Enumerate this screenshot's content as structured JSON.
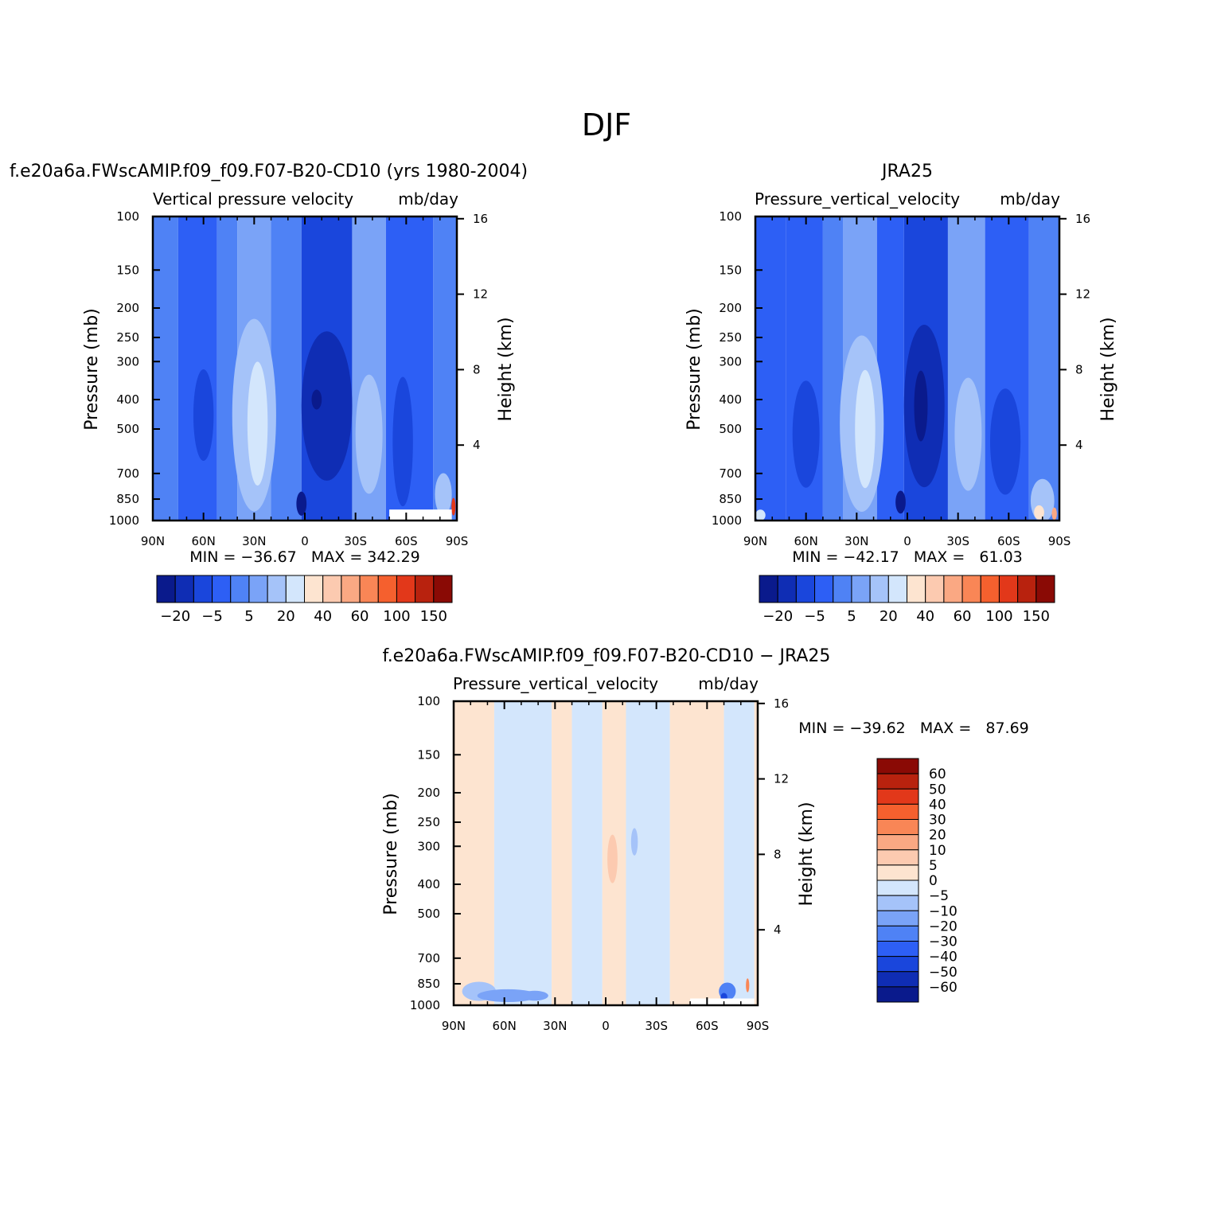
{
  "page_title": "DJF",
  "colors": {
    "neg_scale": [
      "#0a1a8c",
      "#0f2db4",
      "#1a46dc",
      "#2d5ff5",
      "#4f82f5",
      "#7aa3f7",
      "#a5c3f9",
      "#d3e6fc"
    ],
    "pos_scale": [
      "#fde4d0",
      "#fccab0",
      "#faa883",
      "#f98656",
      "#f5602e",
      "#e2381a",
      "#b8220e",
      "#8a0a05"
    ],
    "missing": "#ffffff"
  },
  "chart_data": [
    {
      "type": "heatmap",
      "panel_title": "f.e20a6a.FWscAMIP.f09_f09.F07-B20-CD10 (yrs 1980-2004)",
      "variable": "Vertical pressure velocity",
      "units": "mb/day",
      "ylabel": "Pressure (mb)",
      "y2label": "Height (km)",
      "x_ticks": [
        "90N",
        "60N",
        "30N",
        "0",
        "30S",
        "60S",
        "90S"
      ],
      "x_range": [
        90,
        -90
      ],
      "y_ticks": [
        100,
        150,
        200,
        250,
        300,
        400,
        500,
        700,
        850,
        1000
      ],
      "y_range": [
        100,
        1000
      ],
      "y_scale": "log",
      "y2_ticks": [
        16,
        12,
        8,
        4
      ],
      "min_label": "MIN = −36.67",
      "max_label": "MAX = 342.29",
      "colorbar": {
        "orientation": "horizontal",
        "tick_labels": [
          "−20",
          "−5",
          "5",
          "20",
          "40",
          "60",
          "100",
          "150"
        ]
      },
      "bands": [
        {
          "lat_from": 90,
          "lat_to": 75,
          "level": 4
        },
        {
          "lat_from": 75,
          "lat_to": 52,
          "level": 3
        },
        {
          "lat_from": 52,
          "lat_to": 40,
          "level": 4
        },
        {
          "lat_from": 40,
          "lat_to": 20,
          "level": 5
        },
        {
          "lat_from": 20,
          "lat_to": 2,
          "level": 4
        },
        {
          "lat_from": 2,
          "lat_to": -28,
          "level": 2
        },
        {
          "lat_from": -28,
          "lat_to": -48,
          "level": 5
        },
        {
          "lat_from": -48,
          "lat_to": -76,
          "level": 3
        },
        {
          "lat_from": -76,
          "lat_to": -90,
          "level": 4
        }
      ],
      "blobs": [
        {
          "lat": 60,
          "p": 450,
          "dlat": 6,
          "dp": 300,
          "level": 2
        },
        {
          "lat": 30,
          "p": 450,
          "dlat": 13,
          "dp": 560,
          "level": 6
        },
        {
          "lat": 28,
          "p": 480,
          "dlat": 6,
          "dp": 420,
          "level": 7
        },
        {
          "lat": -13,
          "p": 420,
          "dlat": 15,
          "dp": 430,
          "level": 1
        },
        {
          "lat": -7,
          "p": 400,
          "dlat": 3,
          "dp": 60,
          "level": 0
        },
        {
          "lat": 2,
          "p": 880,
          "dlat": 3,
          "dp": 160,
          "level": 0
        },
        {
          "lat": -38,
          "p": 520,
          "dlat": 8,
          "dp": 440,
          "level": 6
        },
        {
          "lat": -58,
          "p": 550,
          "dlat": 6,
          "dp": 500,
          "level": 2
        },
        {
          "lat": -82,
          "p": 820,
          "dlat": 5,
          "dp": 260,
          "level": 6
        },
        {
          "lat": -88,
          "p": 900,
          "dlat": 1.2,
          "dp": 120,
          "level": 13
        }
      ],
      "missing_boxes": [
        {
          "lat_from": -50,
          "lat_to": -87,
          "p_from": 920,
          "p_to": 1000
        }
      ]
    },
    {
      "type": "heatmap",
      "panel_title": "JRA25",
      "variable": "Pressure_vertical_velocity",
      "units": "mb/day",
      "ylabel": "Pressure (mb)",
      "y2label": "Height (km)",
      "x_ticks": [
        "90N",
        "60N",
        "30N",
        "0",
        "30S",
        "60S",
        "90S"
      ],
      "x_range": [
        90,
        -90
      ],
      "y_ticks": [
        100,
        150,
        200,
        250,
        300,
        400,
        500,
        700,
        850,
        1000
      ],
      "y_range": [
        100,
        1000
      ],
      "y_scale": "log",
      "y2_ticks": [
        16,
        12,
        8,
        4
      ],
      "min_label": "MIN = −42.17",
      "max_label": "MAX =   61.03",
      "colorbar": {
        "orientation": "horizontal",
        "tick_labels": [
          "−20",
          "−5",
          "5",
          "20",
          "40",
          "60",
          "100",
          "150"
        ]
      },
      "bands": [
        {
          "lat_from": 90,
          "lat_to": 72,
          "level": 3
        },
        {
          "lat_from": 72,
          "lat_to": 50,
          "level": 3
        },
        {
          "lat_from": 50,
          "lat_to": 38,
          "level": 4
        },
        {
          "lat_from": 38,
          "lat_to": 18,
          "level": 5
        },
        {
          "lat_from": 18,
          "lat_to": 2,
          "level": 3
        },
        {
          "lat_from": 2,
          "lat_to": -24,
          "level": 2
        },
        {
          "lat_from": -24,
          "lat_to": -46,
          "level": 5
        },
        {
          "lat_from": -46,
          "lat_to": -72,
          "level": 3
        },
        {
          "lat_from": -72,
          "lat_to": -90,
          "level": 4
        }
      ],
      "blobs": [
        {
          "lat": 60,
          "p": 520,
          "dlat": 8,
          "dp": 400,
          "level": 2
        },
        {
          "lat": 27,
          "p": 480,
          "dlat": 13,
          "dp": 560,
          "level": 6
        },
        {
          "lat": 25,
          "p": 500,
          "dlat": 6,
          "dp": 420,
          "level": 7
        },
        {
          "lat": -10,
          "p": 420,
          "dlat": 12,
          "dp": 460,
          "level": 1
        },
        {
          "lat": -8,
          "p": 420,
          "dlat": 4,
          "dp": 220,
          "level": 0
        },
        {
          "lat": 4,
          "p": 870,
          "dlat": 3,
          "dp": 150,
          "level": 0
        },
        {
          "lat": -36,
          "p": 520,
          "dlat": 8,
          "dp": 420,
          "level": 6
        },
        {
          "lat": -58,
          "p": 550,
          "dlat": 9,
          "dp": 420,
          "level": 2
        },
        {
          "lat": -80,
          "p": 860,
          "dlat": 7,
          "dp": 280,
          "level": 6
        },
        {
          "lat": -78,
          "p": 940,
          "dlat": 3,
          "dp": 100,
          "level": 8
        },
        {
          "lat": -87,
          "p": 950,
          "dlat": 1.5,
          "dp": 90,
          "level": 10
        },
        {
          "lat": 87,
          "p": 960,
          "dlat": 3,
          "dp": 80,
          "level": 7
        }
      ],
      "missing_boxes": []
    },
    {
      "type": "heatmap",
      "panel_title": "f.e20a6a.FWscAMIP.f09_f09.F07-B20-CD10 − JRA25",
      "variable": "Pressure_vertical_velocity",
      "units": "mb/day",
      "ylabel": "Pressure (mb)",
      "y2label": "Height (km)",
      "x_ticks": [
        "90N",
        "60N",
        "30N",
        "0",
        "30S",
        "60S",
        "90S"
      ],
      "x_range": [
        90,
        -90
      ],
      "y_ticks": [
        100,
        150,
        200,
        250,
        300,
        400,
        500,
        700,
        850,
        1000
      ],
      "y_range": [
        100,
        1000
      ],
      "y_scale": "log",
      "y2_ticks": [
        16,
        12,
        8,
        4
      ],
      "min_label": "MIN = −39.62",
      "max_label": "MAX =   87.69",
      "colorbar": {
        "orientation": "vertical",
        "tick_labels": [
          "60",
          "50",
          "40",
          "30",
          "20",
          "10",
          "5",
          "0",
          "−5",
          "−10",
          "−20",
          "−30",
          "−40",
          "−50",
          "−60"
        ]
      },
      "bands": [
        {
          "lat_from": 90,
          "lat_to": 66,
          "level": 8
        },
        {
          "lat_from": 66,
          "lat_to": 32,
          "level": 7
        },
        {
          "lat_from": 32,
          "lat_to": 20,
          "level": 8
        },
        {
          "lat_from": 20,
          "lat_to": 2,
          "level": 7
        },
        {
          "lat_from": 2,
          "lat_to": -12,
          "level": 8
        },
        {
          "lat_from": -12,
          "lat_to": -38,
          "level": 7
        },
        {
          "lat_from": -38,
          "lat_to": -70,
          "level": 8
        },
        {
          "lat_from": -70,
          "lat_to": -88,
          "level": 7
        },
        {
          "lat_from": -88,
          "lat_to": -90,
          "level": 8
        }
      ],
      "blobs": [
        {
          "lat": -4,
          "p": 330,
          "dlat": 3,
          "dp": 120,
          "level": 9
        },
        {
          "lat": -17,
          "p": 290,
          "dlat": 2,
          "dp": 60,
          "level": 6
        },
        {
          "lat": 75,
          "p": 900,
          "dlat": 10,
          "dp": 130,
          "level": 6
        },
        {
          "lat": 58,
          "p": 930,
          "dlat": 18,
          "dp": 90,
          "level": 5
        },
        {
          "lat": 42,
          "p": 930,
          "dlat": 8,
          "dp": 70,
          "level": 5
        },
        {
          "lat": -72,
          "p": 900,
          "dlat": 5,
          "dp": 120,
          "level": 4
        },
        {
          "lat": -70,
          "p": 940,
          "dlat": 2,
          "dp": 60,
          "level": 2
        },
        {
          "lat": -84,
          "p": 860,
          "dlat": 1,
          "dp": 90,
          "level": 11
        }
      ],
      "missing_boxes": [
        {
          "lat_from": -50,
          "lat_to": -88,
          "p_from": 950,
          "p_to": 1000
        }
      ]
    }
  ]
}
